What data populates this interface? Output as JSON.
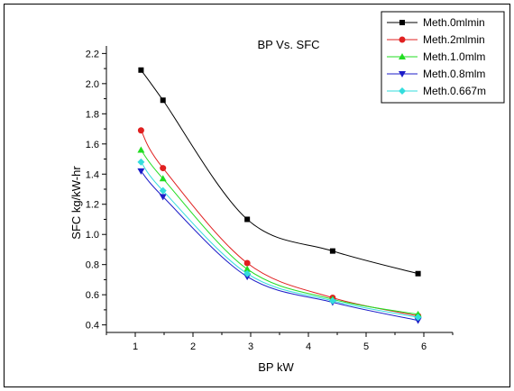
{
  "chart_data": {
    "type": "line",
    "title": "BP Vs. SFC",
    "xlabel": "BP kW",
    "ylabel": "SFC kg/kW-hr",
    "xlim": [
      0.5,
      6.5
    ],
    "ylim": [
      0.35,
      2.25
    ],
    "xticks": [
      "1",
      "2",
      "3",
      "4",
      "5",
      "6"
    ],
    "yticks": [
      "0.4",
      "0.6",
      "0.8",
      "1.0",
      "1.2",
      "1.4",
      "1.6",
      "1.8",
      "2.0",
      "2.2"
    ],
    "grid": false,
    "legend_position": "top-right",
    "series": [
      {
        "name": "Meth.0mlmin",
        "color": "#000000",
        "marker": "square",
        "x": [
          1.1,
          1.48,
          2.94,
          4.42,
          5.9
        ],
        "y": [
          2.09,
          1.89,
          1.1,
          0.89,
          0.74
        ]
      },
      {
        "name": "Meth.2mlmin",
        "color": "#e02020",
        "marker": "circle",
        "x": [
          1.1,
          1.48,
          2.94,
          4.42,
          5.9
        ],
        "y": [
          1.69,
          1.44,
          0.81,
          0.58,
          0.46
        ]
      },
      {
        "name": "Meth.1.0mlm",
        "color": "#22dd22",
        "marker": "triangle-up",
        "x": [
          1.1,
          1.48,
          2.94,
          4.42,
          5.9
        ],
        "y": [
          1.56,
          1.37,
          0.77,
          0.57,
          0.47
        ]
      },
      {
        "name": "Meth.0.8mlm",
        "color": "#1c1cc8",
        "marker": "triangle-down",
        "x": [
          1.1,
          1.48,
          2.94,
          4.42,
          5.9
        ],
        "y": [
          1.42,
          1.25,
          0.72,
          0.55,
          0.43
        ]
      },
      {
        "name": "Meth.0.667m",
        "color": "#33dddd",
        "marker": "diamond",
        "x": [
          1.1,
          1.48,
          2.94,
          4.42,
          5.9
        ],
        "y": [
          1.48,
          1.29,
          0.74,
          0.56,
          0.45
        ]
      }
    ]
  }
}
